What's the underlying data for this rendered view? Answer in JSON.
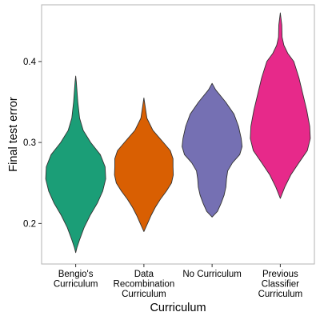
{
  "chart_data": {
    "type": "violin",
    "xlabel": "Curriculum",
    "ylabel": "Final test error",
    "ylim": [
      0.15,
      0.47
    ],
    "yticks": [
      0.2,
      0.3,
      0.4
    ],
    "ytick_labels": [
      "0.2",
      "0.3",
      "0.4"
    ],
    "grid": false,
    "legend": "none",
    "categories": [
      [
        "Bengio's",
        "Curriculum"
      ],
      [
        "Data",
        "Recombination",
        "Curriculum"
      ],
      [
        "No Curriculum"
      ],
      [
        "Previous",
        "Classifier",
        "Curriculum"
      ]
    ],
    "series": [
      {
        "color": "#1b9e77",
        "min": 0.164,
        "max": 0.382,
        "profile": [
          [
            0.382,
            0.0
          ],
          [
            0.375,
            0.02
          ],
          [
            0.35,
            0.07
          ],
          [
            0.33,
            0.13
          ],
          [
            0.315,
            0.25
          ],
          [
            0.3,
            0.5
          ],
          [
            0.285,
            0.82
          ],
          [
            0.27,
            0.98
          ],
          [
            0.255,
            1.0
          ],
          [
            0.24,
            0.9
          ],
          [
            0.225,
            0.72
          ],
          [
            0.21,
            0.48
          ],
          [
            0.195,
            0.28
          ],
          [
            0.18,
            0.13
          ],
          [
            0.17,
            0.04
          ],
          [
            0.164,
            0.0
          ]
        ]
      },
      {
        "color": "#d95f02",
        "min": 0.19,
        "max": 0.355,
        "profile": [
          [
            0.355,
            0.0
          ],
          [
            0.345,
            0.04
          ],
          [
            0.33,
            0.1
          ],
          [
            0.315,
            0.3
          ],
          [
            0.3,
            0.65
          ],
          [
            0.29,
            0.88
          ],
          [
            0.28,
            0.97
          ],
          [
            0.27,
            0.97
          ],
          [
            0.26,
            0.98
          ],
          [
            0.25,
            0.92
          ],
          [
            0.24,
            0.75
          ],
          [
            0.23,
            0.55
          ],
          [
            0.22,
            0.38
          ],
          [
            0.21,
            0.24
          ],
          [
            0.2,
            0.12
          ],
          [
            0.19,
            0.0
          ]
        ]
      },
      {
        "color": "#7570b3",
        "min": 0.208,
        "max": 0.373,
        "profile": [
          [
            0.373,
            0.0
          ],
          [
            0.365,
            0.12
          ],
          [
            0.35,
            0.45
          ],
          [
            0.335,
            0.73
          ],
          [
            0.32,
            0.88
          ],
          [
            0.305,
            0.97
          ],
          [
            0.295,
            1.0
          ],
          [
            0.285,
            0.92
          ],
          [
            0.275,
            0.68
          ],
          [
            0.265,
            0.52
          ],
          [
            0.255,
            0.48
          ],
          [
            0.245,
            0.46
          ],
          [
            0.235,
            0.4
          ],
          [
            0.225,
            0.3
          ],
          [
            0.215,
            0.18
          ],
          [
            0.208,
            0.0
          ]
        ]
      },
      {
        "color": "#e7298a",
        "min": 0.231,
        "max": 0.46,
        "profile": [
          [
            0.46,
            0.0
          ],
          [
            0.445,
            0.05
          ],
          [
            0.43,
            0.06
          ],
          [
            0.42,
            0.12
          ],
          [
            0.41,
            0.25
          ],
          [
            0.4,
            0.45
          ],
          [
            0.38,
            0.62
          ],
          [
            0.36,
            0.75
          ],
          [
            0.34,
            0.88
          ],
          [
            0.32,
            0.98
          ],
          [
            0.305,
            1.0
          ],
          [
            0.29,
            0.9
          ],
          [
            0.275,
            0.62
          ],
          [
            0.26,
            0.35
          ],
          [
            0.245,
            0.15
          ],
          [
            0.231,
            0.0
          ]
        ]
      }
    ]
  }
}
